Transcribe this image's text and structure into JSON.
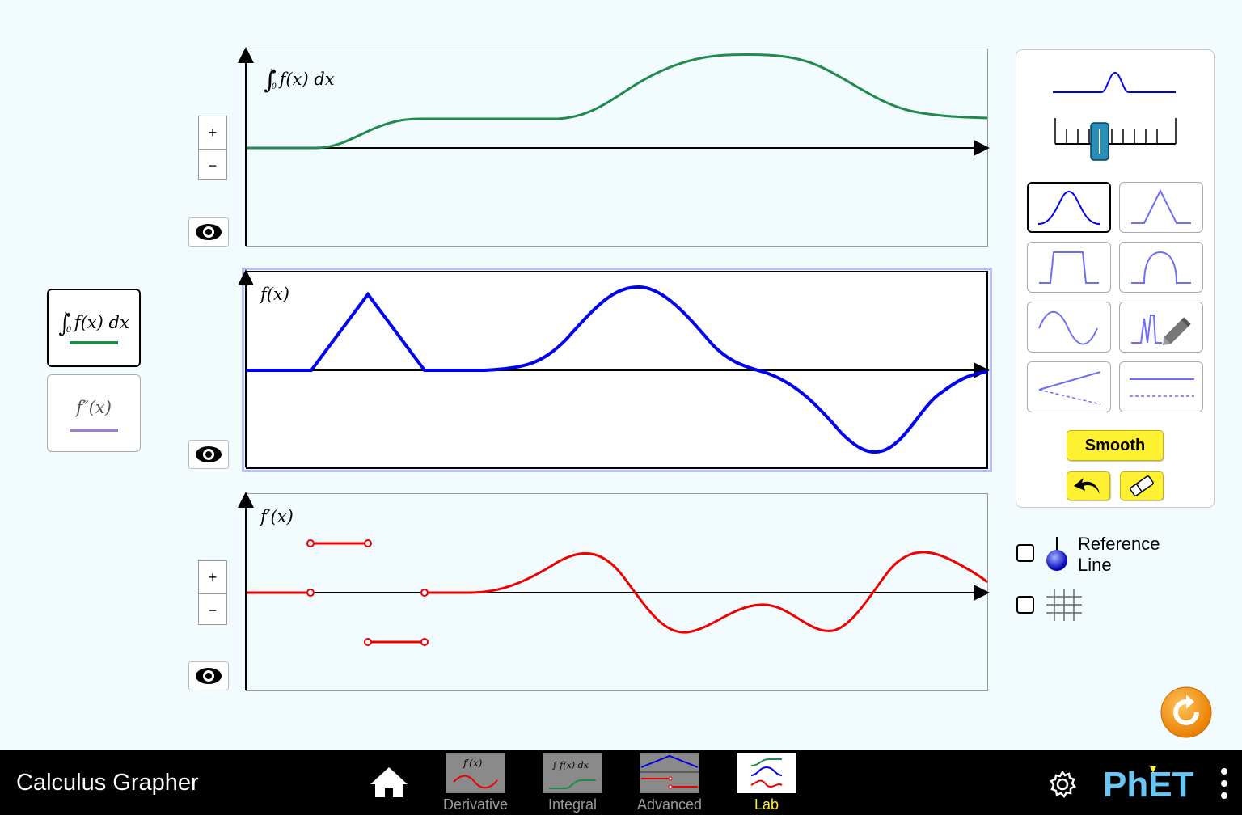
{
  "graphs": {
    "integral": {
      "label_prefix": "f(x) dx",
      "limit_upper": "x",
      "limit_lower": "0",
      "color": "#1f8a4c"
    },
    "original": {
      "label": "f(x)",
      "color": "#0000ee"
    },
    "derivative": {
      "label": "f′(x)",
      "color": "#ee0000"
    }
  },
  "zoom": {
    "plus": "+",
    "minus": "−"
  },
  "left_buttons": {
    "integral": {
      "label": "f(x) dx",
      "limit_upper": "x",
      "limit_lower": "0",
      "color": "#1f8a4c"
    },
    "second_derivative": {
      "label": "f″(x)",
      "color": "#9b7fc0"
    }
  },
  "panel": {
    "smooth_label": "Smooth",
    "shapes": [
      "gaussian-bell",
      "triangle",
      "rectangle-pulse",
      "parabola-bump",
      "sine-wave",
      "freeform-draw",
      "tilted-line",
      "flat-line"
    ],
    "selected_shape": "gaussian-bell"
  },
  "options": {
    "reference_line_label_1": "Reference",
    "reference_line_label_2": "Line",
    "reference_line_checked": false,
    "grid_checked": false
  },
  "navbar": {
    "title": "Calculus Grapher",
    "tabs": [
      {
        "label": "Derivative"
      },
      {
        "label": "Integral"
      },
      {
        "label": "Advanced"
      },
      {
        "label": "Lab"
      }
    ],
    "selected_tab": "Lab",
    "brand": "PhET"
  },
  "colors": {
    "accent_yellow": "#fef132",
    "reset_orange": "#f39c12",
    "selected_tab_label": "#fef132"
  }
}
